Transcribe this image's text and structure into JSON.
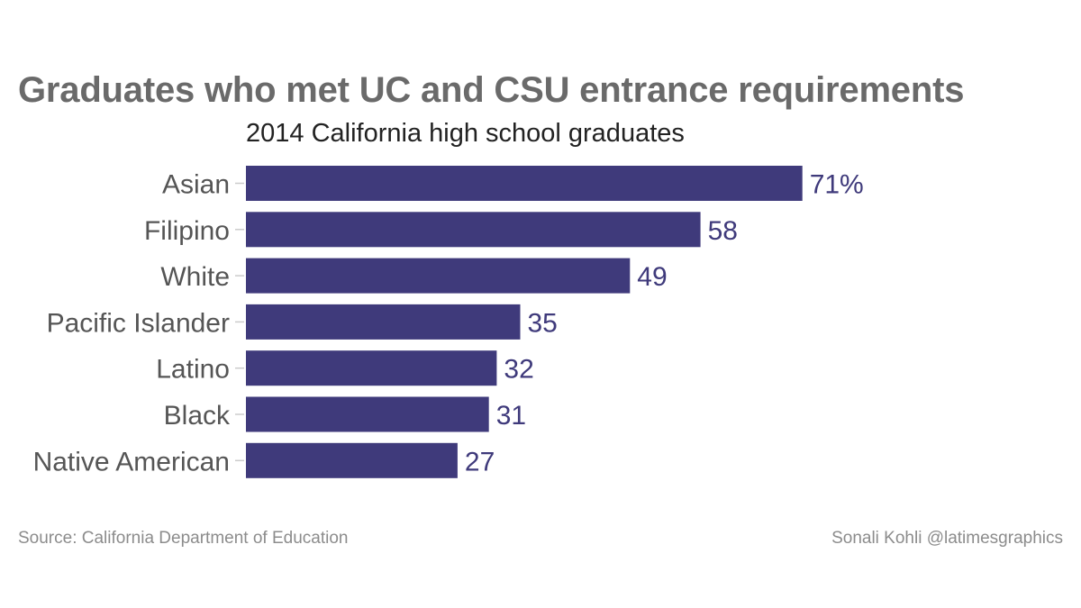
{
  "header": {
    "title": "Graduates who met UC and CSU entrance requirements",
    "subtitle": "2014 California high school graduates"
  },
  "footer": {
    "source": "Source: California Department of Education",
    "credit": "Sonali Kohli @latimesgraphics"
  },
  "colors": {
    "bar": "#3f3a7b",
    "value_label": "#3f3a7b",
    "category_label": "#555555",
    "tick": "#cccccc"
  },
  "chart_data": {
    "type": "bar",
    "orientation": "horizontal",
    "title": "Graduates who met UC and CSU entrance requirements",
    "subtitle": "2014 California high school graduates",
    "xlabel": "",
    "ylabel": "",
    "categories": [
      "Asian",
      "Filipino",
      "White",
      "Pacific Islander",
      "Latino",
      "Black",
      "Native American"
    ],
    "values": [
      71,
      58,
      49,
      35,
      32,
      31,
      27
    ],
    "value_labels": [
      "71%",
      "58",
      "49",
      "35",
      "32",
      "31",
      "27"
    ],
    "xlim": [
      0,
      100
    ],
    "grid": false,
    "legend": "none"
  }
}
